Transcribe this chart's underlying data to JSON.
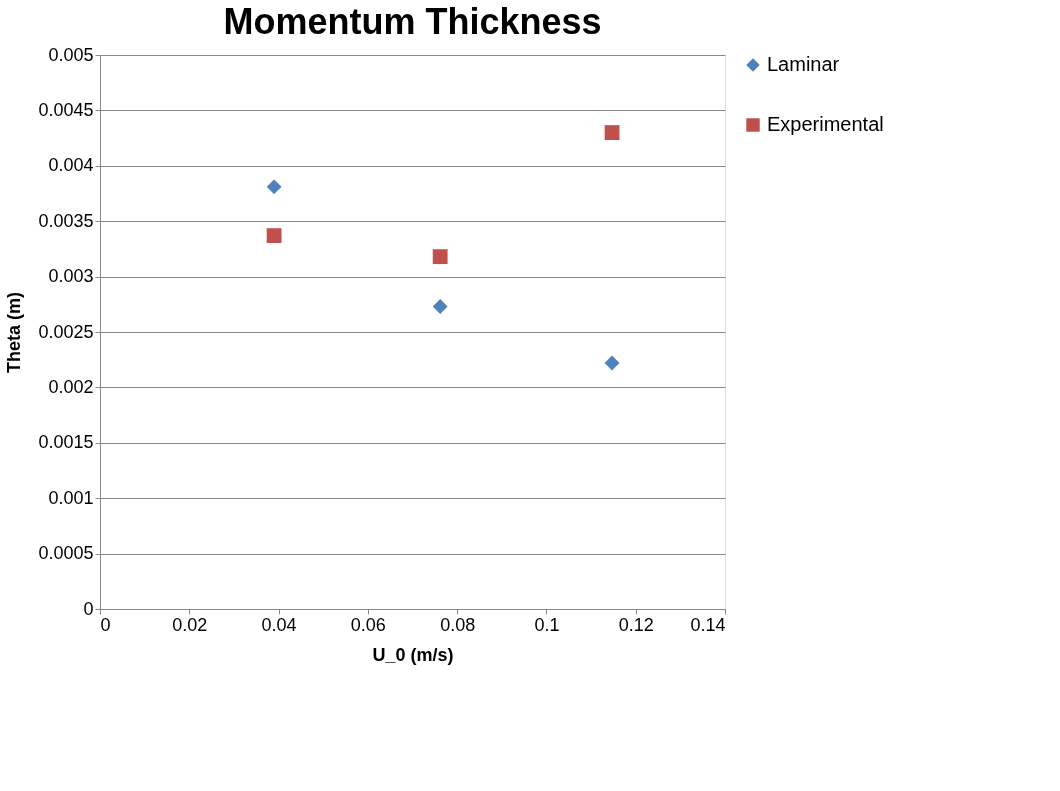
{
  "chart_data": {
    "type": "scatter",
    "title": "Momentum Thickness",
    "xlabel": "U_0 (m/s)",
    "ylabel": "Theta (m)",
    "series": [
      {
        "name": "Laminar",
        "color": "#4f81bd",
        "marker": "diamond",
        "x": [
          0.039,
          0.0762,
          0.1147
        ],
        "values": [
          0.00381,
          0.00273,
          0.00222
        ]
      },
      {
        "name": "Experimental",
        "color": "#c0504d",
        "marker": "square",
        "x": [
          0.039,
          0.0762,
          0.1147
        ],
        "values": [
          0.00337,
          0.00318,
          0.0043
        ]
      }
    ],
    "xlim": [
      0,
      0.14
    ],
    "xticks": [
      0,
      0.02,
      0.04,
      0.06,
      0.08,
      0.1,
      0.12,
      0.14
    ],
    "ylim": [
      0,
      0.005
    ],
    "yticks": [
      0,
      0.0005,
      0.001,
      0.0015,
      0.002,
      0.0025,
      0.003,
      0.0035,
      0.004,
      0.0045,
      0.005
    ],
    "grid": "y",
    "legend": "right"
  }
}
